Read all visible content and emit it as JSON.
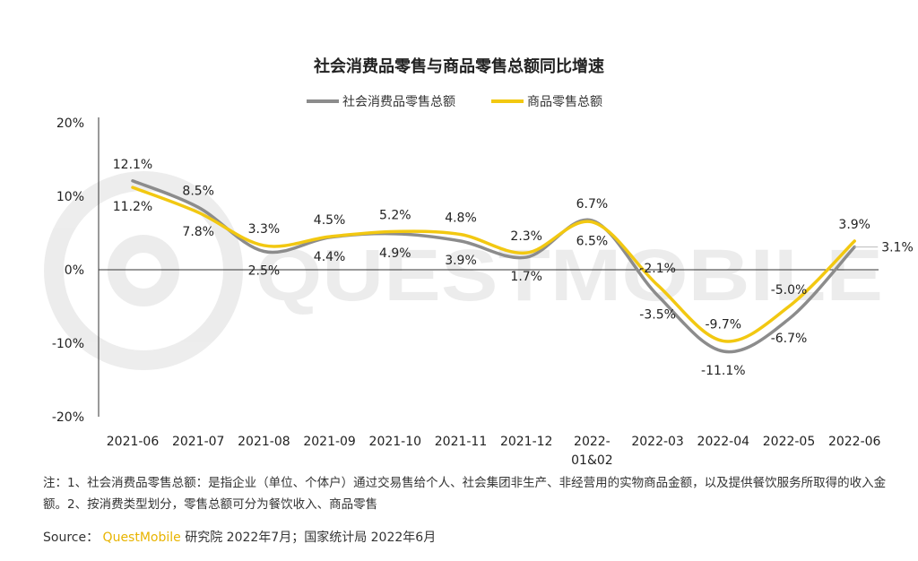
{
  "chart_data": {
    "type": "line",
    "title": "社会消费品零售与商品零售总额同比增速",
    "categories": [
      "2021-06",
      "2021-07",
      "2021-08",
      "2021-09",
      "2021-10",
      "2021-11",
      "2021-12",
      "2022-01&02",
      "2022-03",
      "2022-04",
      "2022-05",
      "2022-06"
    ],
    "category_labels": [
      [
        "2021-06"
      ],
      [
        "2021-07"
      ],
      [
        "2021-08"
      ],
      [
        "2021-09"
      ],
      [
        "2021-10"
      ],
      [
        "2021-11"
      ],
      [
        "2021-12"
      ],
      [
        "2022-",
        "01&02"
      ],
      [
        "2022-03"
      ],
      [
        "2022-04"
      ],
      [
        "2022-05"
      ],
      [
        "2022-06"
      ]
    ],
    "series": [
      {
        "name": "社会消费品零售总额",
        "color": "#8C8C8C",
        "values": [
          12.1,
          8.5,
          2.5,
          4.4,
          4.9,
          3.9,
          1.7,
          6.7,
          -3.5,
          -11.1,
          -6.7,
          3.1
        ],
        "labels": [
          "12.1%",
          "8.5%",
          "2.5%",
          "4.4%",
          "4.9%",
          "3.9%",
          "1.7%",
          "6.7%",
          "-3.5%",
          "-11.1%",
          "-6.7%",
          "3.1%"
        ]
      },
      {
        "name": "商品零售总额",
        "color": "#F2C811",
        "values": [
          11.2,
          7.8,
          3.3,
          4.5,
          5.2,
          4.8,
          2.3,
          6.5,
          -2.1,
          -9.7,
          -5.0,
          3.9
        ],
        "labels": [
          "11.2%",
          "7.8%",
          "3.3%",
          "4.5%",
          "5.2%",
          "4.8%",
          "2.3%",
          "6.5%",
          "-2.1%",
          "-9.7%",
          "-5.0%",
          "3.9%"
        ]
      }
    ],
    "ylim": [
      -20,
      20
    ],
    "yticks": [
      20,
      10,
      0,
      -10,
      -20
    ],
    "ytick_labels": [
      "20%",
      "10%",
      "0%",
      "-10%",
      "-20%"
    ],
    "legend_position": "top-center",
    "grid": false
  },
  "note": "注：1、社会消费品零售总额：是指企业（单位、个体户）通过交易售给个人、社会集团非生产、非经营用的实物商品金额，以及提供餐饮服务所取得的收入金额。2、按消费类型划分，零售总额可分为餐饮收入、商品零售",
  "source": {
    "prefix": "Source：",
    "brand": "QuestMobile",
    "rest": "研究院 2022年7月；国家统计局 2022年6月"
  },
  "watermark": "QUESTMOBILE"
}
